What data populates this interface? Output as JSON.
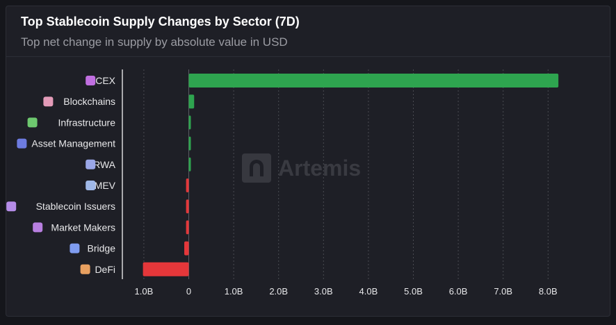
{
  "header": {
    "title": "Top Stablecoin Supply Changes by Sector (7D)",
    "subtitle": "Top net change in supply by absolute value in USD"
  },
  "watermark": {
    "text": "Artemis"
  },
  "colors": {
    "positive": "#2ea44f",
    "negative": "#e5373a",
    "grid": "#4a4b52",
    "text": "#e8e8ea",
    "tick": "#e8e8ea"
  },
  "chart_data": {
    "type": "bar",
    "orientation": "horizontal",
    "categories": [
      "CEX",
      "Blockchains",
      "Infrastructure",
      "Asset Management",
      "RWA",
      "MEV",
      "Stablecoin Issuers",
      "Market Makers",
      "Bridge",
      "DeFi"
    ],
    "category_icons": [
      "bank-icon",
      "cube-icon",
      "building-icon",
      "piggy-bank-icon",
      "chart-icon",
      "lightning-icon",
      "coin-icon",
      "bank-icon",
      "bridge-icon",
      "defi-icon"
    ],
    "values": [
      8.23,
      0.12,
      0.04,
      0.04,
      0.04,
      -0.06,
      -0.06,
      -0.06,
      -0.1,
      -1.02
    ],
    "unit": "B",
    "xlim": [
      -1.0,
      8.3
    ],
    "x_ticks": [
      -1,
      0,
      1,
      2,
      3,
      4,
      5,
      6,
      7,
      8
    ],
    "x_tick_labels": [
      "1.0B",
      "0",
      "1.0B",
      "2.0B",
      "3.0B",
      "4.0B",
      "5.0B",
      "6.0B",
      "7.0B",
      "8.0B"
    ],
    "grid": "vertical dashed"
  }
}
